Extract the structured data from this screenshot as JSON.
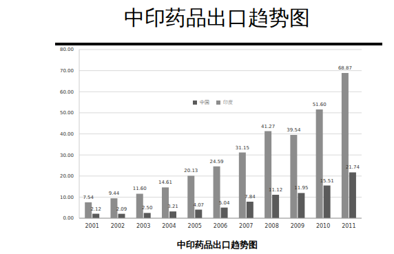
{
  "chart_data": {
    "type": "bar",
    "title": "中印药品出口趋势图",
    "subtitle": "中印药品出口趋势图",
    "categories": [
      "2001",
      "2002",
      "2003",
      "2004",
      "2005",
      "2006",
      "2007",
      "2008",
      "2009",
      "2010",
      "2011"
    ],
    "series": [
      {
        "name": "印度",
        "color": "#8c8c8c",
        "values": [
          7.54,
          9.44,
          11.6,
          14.61,
          20.13,
          24.59,
          31.15,
          41.27,
          39.54,
          51.6,
          68.87
        ],
        "value_labels": [
          "7.54",
          "9.44",
          "11.60",
          "14.61",
          "20.13",
          "24.59",
          "31.15",
          "41.27",
          "39.54",
          "51.60",
          "68.87"
        ]
      },
      {
        "name": "中国",
        "color": "#5a5a5a",
        "values": [
          2.12,
          2.09,
          2.5,
          3.21,
          4.07,
          5.04,
          7.84,
          11.12,
          11.95,
          15.51,
          21.74
        ],
        "value_labels": [
          "2.12",
          "2.09",
          "2.50",
          "3.21",
          "4.07",
          "5.04",
          "7.84",
          "11.12",
          "11.95",
          "15.51",
          "21.74"
        ]
      }
    ],
    "ylim": [
      0,
      80
    ],
    "yticks": [
      {
        "value": 0,
        "label": "0.00"
      },
      {
        "value": 10,
        "label": "10.00"
      },
      {
        "value": 20,
        "label": "20.00"
      },
      {
        "value": 30,
        "label": "30.00"
      },
      {
        "value": 40,
        "label": "40.00"
      },
      {
        "value": 50,
        "label": "50.00"
      },
      {
        "value": 60,
        "label": "60.00"
      },
      {
        "value": 70,
        "label": "70.00"
      },
      {
        "value": 80,
        "label": "80.00"
      }
    ],
    "grid": true,
    "legend": "upper left",
    "data_labels": true
  }
}
